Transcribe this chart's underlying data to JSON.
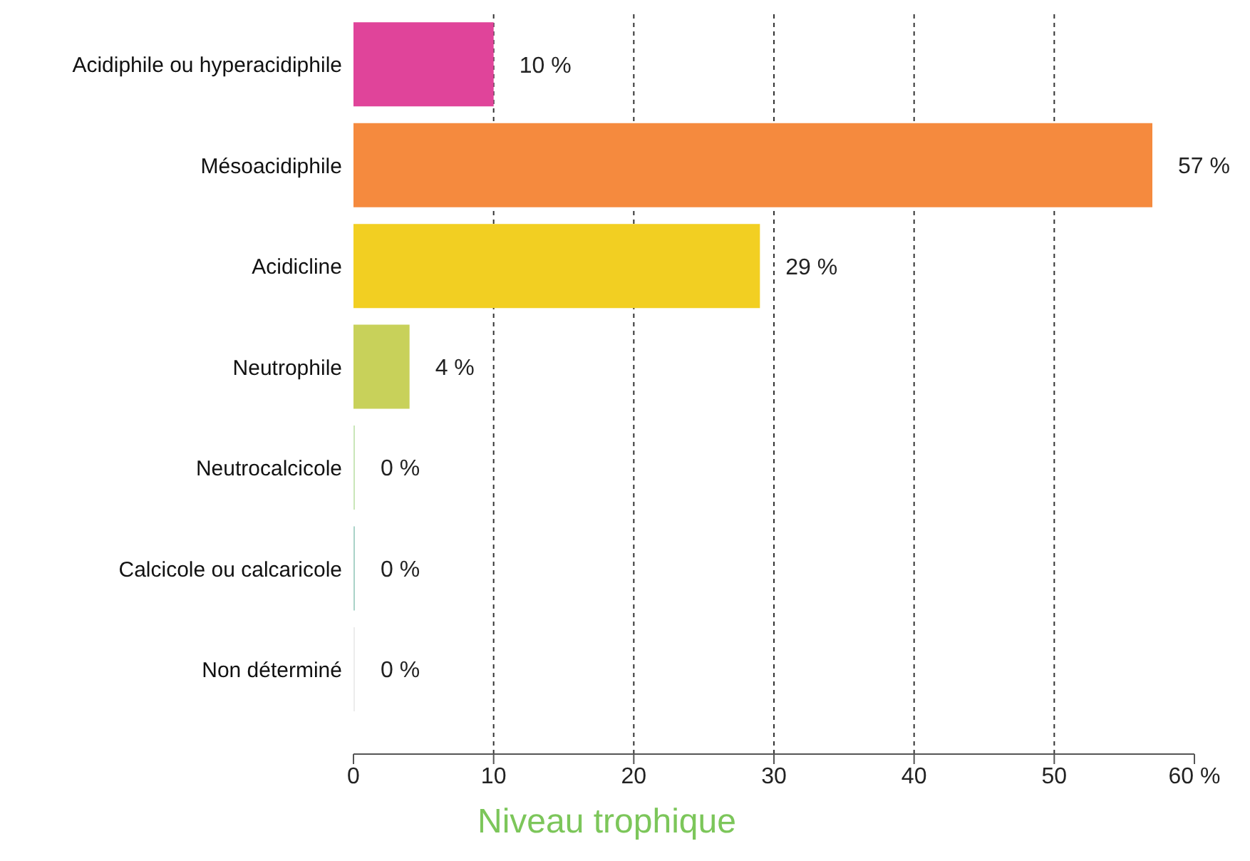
{
  "chart_data": {
    "type": "bar",
    "orientation": "horizontal",
    "categories": [
      "Acidiphile ou hyperacidiphile",
      "Mésoacidiphile",
      "Acidicline",
      "Neutrophile",
      "Neutrocalcicole",
      "Calcicole ou calcaricole",
      "Non déterminé"
    ],
    "values": [
      10,
      57,
      29,
      4,
      0,
      0,
      0
    ],
    "colors": [
      "#e0449a",
      "#f58a3e",
      "#f2cf22",
      "#c8d15a",
      "#c9e6b8",
      "#a9d3c8",
      "#ececec"
    ],
    "value_labels": [
      "10 %",
      "57 %",
      "29 %",
      "4 %",
      "0 %",
      "0 %",
      "0 %"
    ],
    "xlim": [
      0,
      60
    ],
    "xticks": [
      0,
      10,
      20,
      30,
      40,
      50,
      {
        "value": 60,
        "label": "60 %"
      }
    ],
    "grid": "x",
    "annotations": [
      "Niveau trophique"
    ]
  }
}
